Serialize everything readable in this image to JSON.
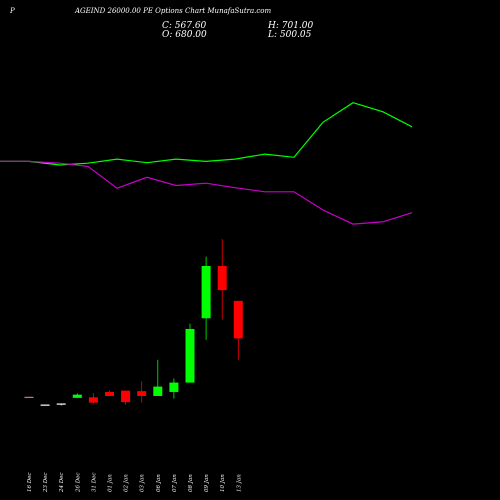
{
  "chart_data": {
    "type": "candlestick",
    "title": "AGEIND 26000.00 PE Options Chart MunafaSutra.com",
    "title_prefix": "P",
    "ohlc_summary": {
      "c_label": "C: 567.60",
      "h_label": "H: 701.00",
      "o_label": "O: 680.00",
      "l_label": "L: 500.05"
    },
    "categories": [
      "16 Dec",
      "23 Dec",
      "24 Dec",
      "26 Dec",
      "31 Dec",
      "01 Jan",
      "02 Jan",
      "03 Jan",
      "06 Jan",
      "07 Jan",
      "08 Jan",
      "09 Jan",
      "10 Jan",
      "13 Jan"
    ],
    "candles": [
      {
        "date": "16 Dec",
        "open": 12,
        "high": 12,
        "low": 11,
        "close": 11,
        "color": "#c87878"
      },
      {
        "date": "23 Dec",
        "open": -17,
        "high": -17,
        "low": -18,
        "close": -18,
        "color": "#ffffff"
      },
      {
        "date": "24 Dec",
        "open": -15,
        "high": -14,
        "low": -20,
        "close": -13,
        "color": "#ffffff"
      },
      {
        "date": "26 Dec",
        "open": 8,
        "high": 25,
        "low": 7,
        "close": 20,
        "color": "#00ff00"
      },
      {
        "date": "31 Dec",
        "open": 10,
        "high": 25,
        "low": -13,
        "close": -10,
        "color": "#ff0000"
      },
      {
        "date": "01 Jan",
        "open": 30,
        "high": 35,
        "low": 15,
        "close": 15,
        "color": "#ff0000"
      },
      {
        "date": "02 Jan",
        "open": 35,
        "high": 35,
        "low": -18,
        "close": -8,
        "color": "#ff0000"
      },
      {
        "date": "03 Jan",
        "open": 33,
        "high": 70,
        "low": -10,
        "close": 15,
        "color": "#ff0000"
      },
      {
        "date": "06 Jan",
        "open": 15,
        "high": 150,
        "low": 15,
        "close": 50,
        "color": "#00ff00"
      },
      {
        "date": "07 Jan",
        "open": 30,
        "high": 80,
        "low": 5,
        "close": 65,
        "color": "#00ff00"
      },
      {
        "date": "08 Jan",
        "open": 65,
        "high": 285,
        "low": 65,
        "close": 265,
        "color": "#00ff00"
      },
      {
        "date": "09 Jan",
        "open": 305,
        "high": 535,
        "low": 225,
        "close": 500,
        "color": "#00ff00"
      },
      {
        "date": "10 Jan",
        "open": 500,
        "high": 600,
        "low": 300,
        "close": 410,
        "color": "#ff0000"
      },
      {
        "date": "13 Jan",
        "open": 370,
        "high": 370,
        "low": 150,
        "close": 230,
        "color": "#ff0000"
      }
    ],
    "line_series": [
      {
        "color": "#00ff00",
        "values": [
          2490,
          2490,
          2410,
          2450,
          2540,
          2460,
          2540,
          2490,
          2540,
          2650,
          2580,
          3350,
          3780,
          3580,
          3250
        ]
      },
      {
        "color": "#cc00cc",
        "values": [
          2490,
          2490,
          2450,
          2380,
          1900,
          2140,
          1960,
          2010,
          1910,
          1820,
          1820,
          1420,
          1110,
          1160,
          1360
        ]
      }
    ],
    "line_dates": [
      "",
      "16 Dec",
      "23 Dec",
      "24 Dec",
      "26 Dec",
      "31 Dec",
      "01 Jan",
      "02 Jan",
      "03 Jan",
      "06 Jan",
      "07 Jan",
      "08 Jan",
      "09 Jan",
      "10 Jan",
      "13 Jan"
    ],
    "xlabel": "",
    "ylabel": "",
    "grid": false,
    "background": "#000000"
  }
}
